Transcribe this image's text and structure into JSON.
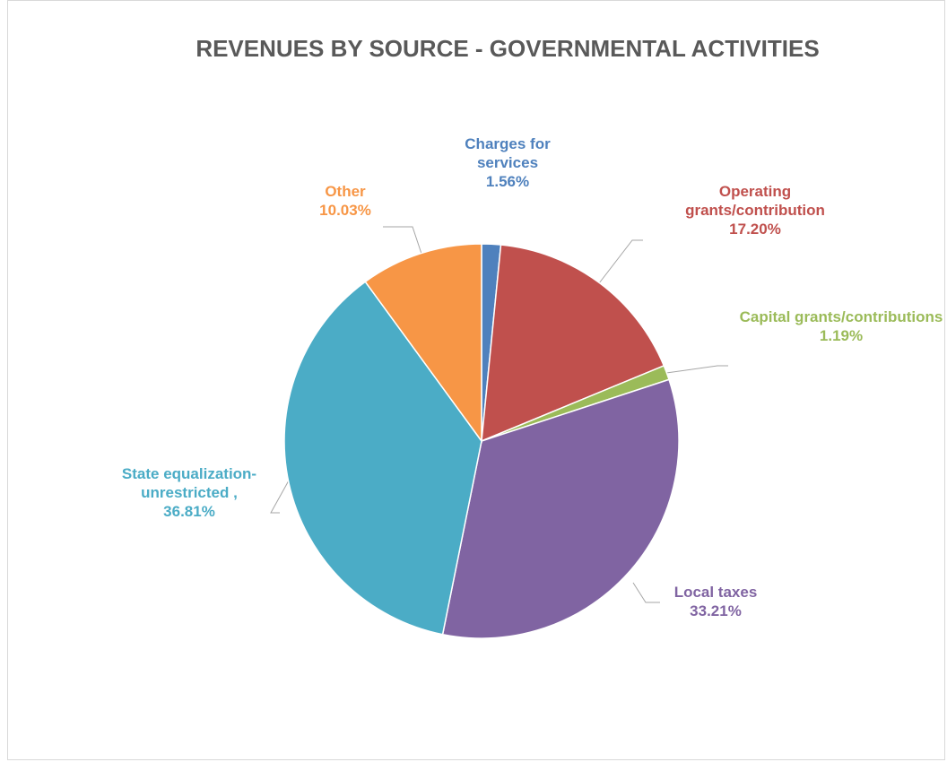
{
  "chart_data": {
    "type": "pie",
    "title": "REVENUES BY SOURCE - GOVERNMENTAL ACTIVITIES",
    "categories": [
      "Charges for services",
      "Operating grants/contribution",
      "Capital grants/contributions",
      "Local taxes",
      "State equalization-unrestricted ,",
      "Other"
    ],
    "values": [
      1.56,
      17.2,
      1.19,
      33.21,
      36.81,
      10.03
    ],
    "value_labels": [
      "1.56%",
      "17.20%",
      "1.19%",
      "33.21%",
      "36.81%",
      "10.03%"
    ],
    "colors": [
      "#4f81bd",
      "#c0504d",
      "#9bbb59",
      "#8064a2",
      "#4bacc6",
      "#f79646"
    ]
  }
}
